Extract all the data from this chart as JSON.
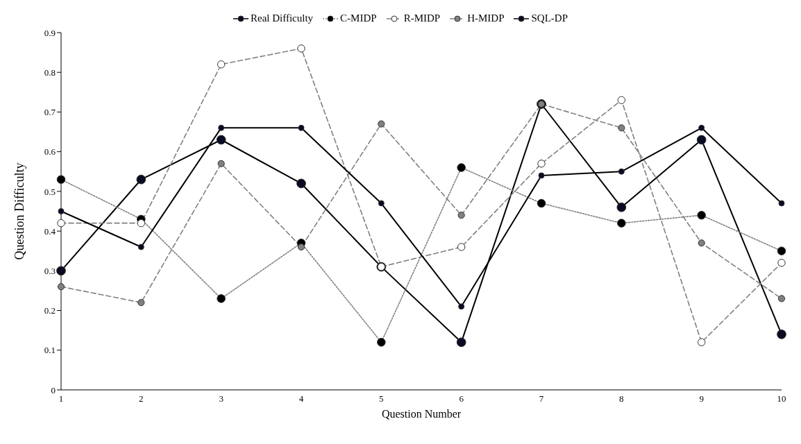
{
  "chart_data": {
    "type": "line",
    "xlabel": "Question Number",
    "ylabel": "Question Difficulty",
    "categories": [
      "1",
      "2",
      "3",
      "4",
      "5",
      "6",
      "7",
      "8",
      "9",
      "10"
    ],
    "ylim": [
      0,
      0.9
    ],
    "yticks": [
      0,
      0.1,
      0.2,
      0.3,
      0.4,
      0.5,
      0.6,
      0.7,
      0.8,
      0.9
    ],
    "grid": false,
    "legend": "top",
    "marker": "circle",
    "series": [
      {
        "name": "Real Difficulty",
        "color": "#000000",
        "line_style": "solid",
        "colors": [
          "#0a0a23",
          "#0a0a23",
          "#0a0a23",
          "#0a0a23",
          "#0a0a23",
          "#0a0a23",
          "#0a0a23",
          "#0a0a23",
          "#0a0a23",
          "#0a0a23"
        ],
        "values": [
          0.3,
          0.53,
          0.63,
          0.52,
          0.31,
          0.12,
          0.72,
          0.46,
          0.63,
          0.14
        ]
      },
      {
        "name": "C-MIDP",
        "color": "#808080",
        "line_style": "dotted",
        "colors": [
          "#000000",
          "#000000",
          "#000000",
          "#000000",
          "#000000",
          "#000000",
          "#000000",
          "#000000",
          "#000000",
          "#000000"
        ],
        "values": [
          0.53,
          0.43,
          0.23,
          0.37,
          0.12,
          0.56,
          0.47,
          0.42,
          0.44,
          0.35
        ]
      },
      {
        "name": "R-MIDP",
        "color": "#808080",
        "line_style": "dashed",
        "colors": [
          "#ffffff",
          "#ffffff",
          "#ffffff",
          "#ffffff",
          "#ffffff",
          "#ffffff",
          "#ffffff",
          "#ffffff",
          "#ffffff",
          "#ffffff"
        ],
        "values": [
          0.42,
          0.42,
          0.82,
          0.86,
          0.31,
          0.36,
          0.57,
          0.73,
          0.12,
          0.32
        ]
      },
      {
        "name": "H-MIDP",
        "color": "#808080",
        "line_style": "dashed",
        "colors": [
          "#808080",
          "#808080",
          "#808080",
          "#808080",
          "#808080",
          "#808080",
          "#808080",
          "#808080",
          "#808080",
          "#808080"
        ],
        "values": [
          0.26,
          0.22,
          0.57,
          0.36,
          0.67,
          0.44,
          0.72,
          0.66,
          0.37,
          0.23
        ]
      },
      {
        "name": "SQL-DP",
        "color": "#000000",
        "line_style": "solid",
        "colors": [
          "#0a0a23",
          "#0a0a23",
          "#0a0a23",
          "#0a0a23",
          "#0a0a23",
          "#0a0a23",
          "#0a0a23",
          "#0a0a23",
          "#0a0a23",
          "#0a0a23"
        ],
        "values": [
          0.45,
          0.36,
          0.66,
          0.66,
          0.47,
          0.21,
          0.54,
          0.55,
          0.66,
          0.47
        ]
      }
    ]
  }
}
